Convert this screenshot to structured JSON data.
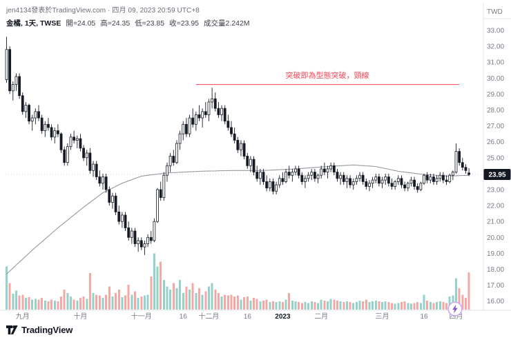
{
  "header": {
    "byline": "jen4134發表於TradingView.com · 四月 09, 2023 20:59 UTC+8",
    "title": "金橘, 1天, TWSE",
    "open": "開=24.05",
    "high": "高=24.35",
    "low": "低=23.85",
    "close": "收=23.95",
    "volume": "成交量2.242M"
  },
  "price_axis": {
    "currency": "TWD",
    "tick_labels": [
      "33.00",
      "32.00",
      "31.00",
      "30.00",
      "29.00",
      "28.00",
      "27.00",
      "26.00",
      "25.00",
      "24.00",
      "23.00",
      "22.00",
      "21.00",
      "20.00",
      "19.00",
      "18.00",
      "17.00",
      "16.00"
    ],
    "last_price_label": "23.95",
    "last_price_value": 23.95
  },
  "time_axis": {
    "ticks": [
      {
        "i": 5,
        "label": "九月"
      },
      {
        "i": 23,
        "label": "十月"
      },
      {
        "i": 42,
        "label": "十一月"
      },
      {
        "i": 55,
        "label": "16"
      },
      {
        "i": 63,
        "label": "十二月"
      },
      {
        "i": 75,
        "label": "16"
      },
      {
        "i": 86,
        "label": "2023",
        "strong": true
      },
      {
        "i": 98,
        "label": "二月"
      },
      {
        "i": 117,
        "label": "三月"
      },
      {
        "i": 130,
        "label": "16"
      },
      {
        "i": 140,
        "label": "四月"
      }
    ]
  },
  "annotation": {
    "text": "突破即為型態突破，頸線",
    "price": 29.6,
    "from_index": 59,
    "to_index": 141,
    "color": "#f24654"
  },
  "footer": {
    "brand": "TradingView"
  },
  "boost_icon": {
    "name": "lightning-boost",
    "ring_color": "#c9aaf2",
    "bolt_color": "#8b55cf"
  },
  "chart_data": {
    "type": "candlestick",
    "title": "金橘 1天 TWSE",
    "currency": "TWD",
    "ylim": [
      15.5,
      33.4
    ],
    "grid": false,
    "legend": "none",
    "colors": {
      "candle_up_fill": "#ffffff",
      "candle_down_fill": "#161a25",
      "candle_border": "#161a25",
      "volume_up": "#93d1ca",
      "volume_down": "#f5a7a4",
      "ma_line": "#9598a1",
      "axis_text": "#787b86",
      "axis_line": "#e0e3eb",
      "badge_bg": "#131722",
      "badge_text": "#ffffff"
    },
    "ma_anchors": [
      [
        0,
        17.7
      ],
      [
        8,
        19.2
      ],
      [
        16,
        20.6
      ],
      [
        24,
        21.9
      ],
      [
        30,
        22.8
      ],
      [
        36,
        23.4
      ],
      [
        42,
        23.85
      ],
      [
        50,
        24.05
      ],
      [
        60,
        24.15
      ],
      [
        70,
        24.2
      ],
      [
        80,
        24.2
      ],
      [
        90,
        24.3
      ],
      [
        100,
        24.45
      ],
      [
        108,
        24.55
      ],
      [
        115,
        24.45
      ],
      [
        122,
        24.15
      ],
      [
        130,
        23.95
      ],
      [
        137,
        23.85
      ],
      [
        144,
        23.9
      ]
    ],
    "candles": [
      [
        29.9,
        32.6,
        29.7,
        31.8,
        2.6
      ],
      [
        31.8,
        32.0,
        29.0,
        29.2,
        1.6
      ],
      [
        29.2,
        29.8,
        28.6,
        29.6,
        0.95
      ],
      [
        29.6,
        30.3,
        29.2,
        30.1,
        1.15
      ],
      [
        30.1,
        30.3,
        28.7,
        28.9,
        0.85
      ],
      [
        28.9,
        29.1,
        27.7,
        27.9,
        0.9
      ],
      [
        27.9,
        28.5,
        27.5,
        28.3,
        0.7
      ],
      [
        28.3,
        28.4,
        27.1,
        27.3,
        0.75
      ],
      [
        27.3,
        27.7,
        26.7,
        27.5,
        0.6
      ],
      [
        27.5,
        28.1,
        27.1,
        27.9,
        0.65
      ],
      [
        27.9,
        28.3,
        27.3,
        27.5,
        0.6
      ],
      [
        27.5,
        27.7,
        26.5,
        26.7,
        0.7
      ],
      [
        26.7,
        27.3,
        26.3,
        27.1,
        0.55
      ],
      [
        27.1,
        27.5,
        26.7,
        26.9,
        0.5
      ],
      [
        26.9,
        27.1,
        26.1,
        26.3,
        0.6
      ],
      [
        26.3,
        26.9,
        25.9,
        26.7,
        0.55
      ],
      [
        26.7,
        27.1,
        26.3,
        26.5,
        0.5
      ],
      [
        26.5,
        26.6,
        25.3,
        25.5,
        0.8
      ],
      [
        25.5,
        25.7,
        24.5,
        24.7,
        1.2
      ],
      [
        24.7,
        25.9,
        24.5,
        25.7,
        1.0
      ],
      [
        25.7,
        26.5,
        25.5,
        26.3,
        0.8
      ],
      [
        26.3,
        26.7,
        25.9,
        26.1,
        0.6
      ],
      [
        26.1,
        26.4,
        25.6,
        26.2,
        0.55
      ],
      [
        26.2,
        26.5,
        25.4,
        25.6,
        0.7
      ],
      [
        25.6,
        25.8,
        24.8,
        25.0,
        0.8
      ],
      [
        25.0,
        25.5,
        24.5,
        25.3,
        0.65
      ],
      [
        25.3,
        25.6,
        24.0,
        24.2,
        2.2
      ],
      [
        24.2,
        24.8,
        23.8,
        24.6,
        1.0
      ],
      [
        24.6,
        24.8,
        23.6,
        23.8,
        0.9
      ],
      [
        23.8,
        24.2,
        23.2,
        23.4,
        0.85
      ],
      [
        23.4,
        24.0,
        23.0,
        23.8,
        0.7
      ],
      [
        23.8,
        24.0,
        22.8,
        23.0,
        0.9
      ],
      [
        23.0,
        23.2,
        22.0,
        22.2,
        1.4
      ],
      [
        22.2,
        22.8,
        21.8,
        22.6,
        0.8
      ],
      [
        22.6,
        22.8,
        21.4,
        21.6,
        1.0
      ],
      [
        21.6,
        22.0,
        20.8,
        21.0,
        1.2
      ],
      [
        21.0,
        21.6,
        20.6,
        21.4,
        0.75
      ],
      [
        21.4,
        21.6,
        20.4,
        20.6,
        0.85
      ],
      [
        20.6,
        21.0,
        19.8,
        20.0,
        1.5
      ],
      [
        20.0,
        20.6,
        19.6,
        20.4,
        0.9
      ],
      [
        20.4,
        20.6,
        19.4,
        19.6,
        1.1
      ],
      [
        19.6,
        20.0,
        19.1,
        19.8,
        0.7
      ],
      [
        19.8,
        20.0,
        19.2,
        19.4,
        0.8
      ],
      [
        19.4,
        19.8,
        18.9,
        19.6,
        0.85
      ],
      [
        19.6,
        20.2,
        19.4,
        20.0,
        0.9
      ],
      [
        20.0,
        20.4,
        19.6,
        19.8,
        2.0
      ],
      [
        19.8,
        21.2,
        19.7,
        21.0,
        3.4
      ],
      [
        21.0,
        23.1,
        20.9,
        23.0,
        2.6
      ],
      [
        23.0,
        23.5,
        22.3,
        22.5,
        2.9
      ],
      [
        22.5,
        24.1,
        22.3,
        23.9,
        1.8
      ],
      [
        23.9,
        24.7,
        23.5,
        24.5,
        1.4
      ],
      [
        24.5,
        25.3,
        24.1,
        25.1,
        1.2
      ],
      [
        25.1,
        25.5,
        24.5,
        24.7,
        1.6
      ],
      [
        24.7,
        26.1,
        24.6,
        25.9,
        1.3
      ],
      [
        25.9,
        26.7,
        25.5,
        26.5,
        1.8
      ],
      [
        26.5,
        27.3,
        26.1,
        27.1,
        1.0
      ],
      [
        27.1,
        27.5,
        26.3,
        26.5,
        1.4
      ],
      [
        26.5,
        27.7,
        26.3,
        27.5,
        1.2
      ],
      [
        27.5,
        28.1,
        26.9,
        27.1,
        1.6
      ],
      [
        27.1,
        27.9,
        26.7,
        27.7,
        1.0
      ],
      [
        27.7,
        28.3,
        27.3,
        27.5,
        1.3
      ],
      [
        27.5,
        28.1,
        26.9,
        27.9,
        0.9
      ],
      [
        27.9,
        28.5,
        27.5,
        27.7,
        1.1
      ],
      [
        27.7,
        28.7,
        27.3,
        28.5,
        1.4
      ],
      [
        28.5,
        29.4,
        28.1,
        28.7,
        1.6
      ],
      [
        28.7,
        29.1,
        27.9,
        28.1,
        1.2
      ],
      [
        28.1,
        28.5,
        27.5,
        27.7,
        1.0
      ],
      [
        27.7,
        28.3,
        27.3,
        28.1,
        0.8
      ],
      [
        28.1,
        28.3,
        27.1,
        27.3,
        0.9
      ],
      [
        27.3,
        27.7,
        26.7,
        26.9,
        0.85
      ],
      [
        26.9,
        27.3,
        26.3,
        26.5,
        0.9
      ],
      [
        26.5,
        26.9,
        25.9,
        26.1,
        0.8
      ],
      [
        26.1,
        26.3,
        25.3,
        25.5,
        0.85
      ],
      [
        25.5,
        26.1,
        25.1,
        25.9,
        0.6
      ],
      [
        25.9,
        26.1,
        24.9,
        25.1,
        0.75
      ],
      [
        25.1,
        25.3,
        24.3,
        24.5,
        0.8
      ],
      [
        24.5,
        25.1,
        24.1,
        24.9,
        0.55
      ],
      [
        24.9,
        25.1,
        23.9,
        24.1,
        0.7
      ],
      [
        24.1,
        24.5,
        23.5,
        23.7,
        0.65
      ],
      [
        23.7,
        24.3,
        23.3,
        24.1,
        0.5
      ],
      [
        24.1,
        24.3,
        23.3,
        23.5,
        0.55
      ],
      [
        23.5,
        23.9,
        22.9,
        23.1,
        0.6
      ],
      [
        23.1,
        23.7,
        22.9,
        23.5,
        0.45
      ],
      [
        23.5,
        23.7,
        22.7,
        22.9,
        0.5
      ],
      [
        22.9,
        23.5,
        22.7,
        23.3,
        0.45
      ],
      [
        23.3,
        23.9,
        23.1,
        23.7,
        0.5
      ],
      [
        23.7,
        24.1,
        23.3,
        23.5,
        0.45
      ],
      [
        23.5,
        24.3,
        23.4,
        24.1,
        0.6
      ],
      [
        24.1,
        24.5,
        23.7,
        23.9,
        1.0
      ],
      [
        23.9,
        24.3,
        23.5,
        24.1,
        0.55
      ],
      [
        24.1,
        24.5,
        23.9,
        24.3,
        0.5
      ],
      [
        24.3,
        24.5,
        23.7,
        23.9,
        0.45
      ],
      [
        23.9,
        24.1,
        23.3,
        23.5,
        0.4
      ],
      [
        23.5,
        23.9,
        23.1,
        23.7,
        0.45
      ],
      [
        23.7,
        24.1,
        23.5,
        23.9,
        0.4
      ],
      [
        23.9,
        24.3,
        23.6,
        24.1,
        0.5
      ],
      [
        24.1,
        24.3,
        23.5,
        23.7,
        0.45
      ],
      [
        23.7,
        24.0,
        23.4,
        23.9,
        0.4
      ],
      [
        23.9,
        24.5,
        23.7,
        24.3,
        0.6
      ],
      [
        24.3,
        24.7,
        23.9,
        24.1,
        0.55
      ],
      [
        24.1,
        24.5,
        23.7,
        24.3,
        0.5
      ],
      [
        24.3,
        24.7,
        24.1,
        24.5,
        0.65
      ],
      [
        24.5,
        24.7,
        23.9,
        24.1,
        0.6
      ],
      [
        24.1,
        24.3,
        23.5,
        23.7,
        0.55
      ],
      [
        23.7,
        24.1,
        23.3,
        23.9,
        0.5
      ],
      [
        23.9,
        24.1,
        23.3,
        23.5,
        0.45
      ],
      [
        23.5,
        23.9,
        23.1,
        23.7,
        0.5
      ],
      [
        23.7,
        23.9,
        23.1,
        23.3,
        0.45
      ],
      [
        23.3,
        23.7,
        23.0,
        23.5,
        0.4
      ],
      [
        23.5,
        23.9,
        23.3,
        23.7,
        0.45
      ],
      [
        23.7,
        24.1,
        23.5,
        23.9,
        0.55
      ],
      [
        23.9,
        24.1,
        23.3,
        23.5,
        0.5
      ],
      [
        23.5,
        23.7,
        23.0,
        23.2,
        0.6
      ],
      [
        23.2,
        23.6,
        22.9,
        23.4,
        0.45
      ],
      [
        23.4,
        23.8,
        23.1,
        23.6,
        0.5
      ],
      [
        23.6,
        24.0,
        23.4,
        23.8,
        0.55
      ],
      [
        23.8,
        24.0,
        23.2,
        23.4,
        0.5
      ],
      [
        23.4,
        23.8,
        23.1,
        23.6,
        0.45
      ],
      [
        23.6,
        24.0,
        23.3,
        23.8,
        0.5
      ],
      [
        23.8,
        24.0,
        23.2,
        23.4,
        0.45
      ],
      [
        23.4,
        23.7,
        23.0,
        23.2,
        0.4
      ],
      [
        23.2,
        23.6,
        23.0,
        23.5,
        0.35
      ],
      [
        23.5,
        23.9,
        23.3,
        23.7,
        0.4
      ],
      [
        23.7,
        23.9,
        23.1,
        23.3,
        0.45
      ],
      [
        23.3,
        23.5,
        22.9,
        23.1,
        0.5
      ],
      [
        23.1,
        23.5,
        22.9,
        23.4,
        0.4
      ],
      [
        23.4,
        23.8,
        23.2,
        23.6,
        0.35
      ],
      [
        23.6,
        23.8,
        23.0,
        23.2,
        0.4
      ],
      [
        23.2,
        23.4,
        22.8,
        23.0,
        0.45
      ],
      [
        23.0,
        23.5,
        22.9,
        23.4,
        0.4
      ],
      [
        23.4,
        24.0,
        23.3,
        23.9,
        0.9
      ],
      [
        23.9,
        24.1,
        23.4,
        23.6,
        0.55
      ],
      [
        23.6,
        24.0,
        23.4,
        23.8,
        0.45
      ],
      [
        23.8,
        24.0,
        23.3,
        23.5,
        0.4
      ],
      [
        23.5,
        23.9,
        23.3,
        23.7,
        0.45
      ],
      [
        23.7,
        24.1,
        23.5,
        23.9,
        0.5
      ],
      [
        23.9,
        24.1,
        23.4,
        23.6,
        0.45
      ],
      [
        23.6,
        23.9,
        23.3,
        23.5,
        0.4
      ],
      [
        23.5,
        24.0,
        23.4,
        23.9,
        0.8
      ],
      [
        23.9,
        24.2,
        23.6,
        24.1,
        0.85
      ],
      [
        24.1,
        25.9,
        24.0,
        25.4,
        1.9
      ],
      [
        25.4,
        25.6,
        24.5,
        24.7,
        1.3
      ],
      [
        24.7,
        25.0,
        24.2,
        24.4,
        0.9
      ],
      [
        24.4,
        24.6,
        24.0,
        24.2,
        0.7
      ],
      [
        24.05,
        24.35,
        23.85,
        23.95,
        2.242
      ]
    ]
  }
}
